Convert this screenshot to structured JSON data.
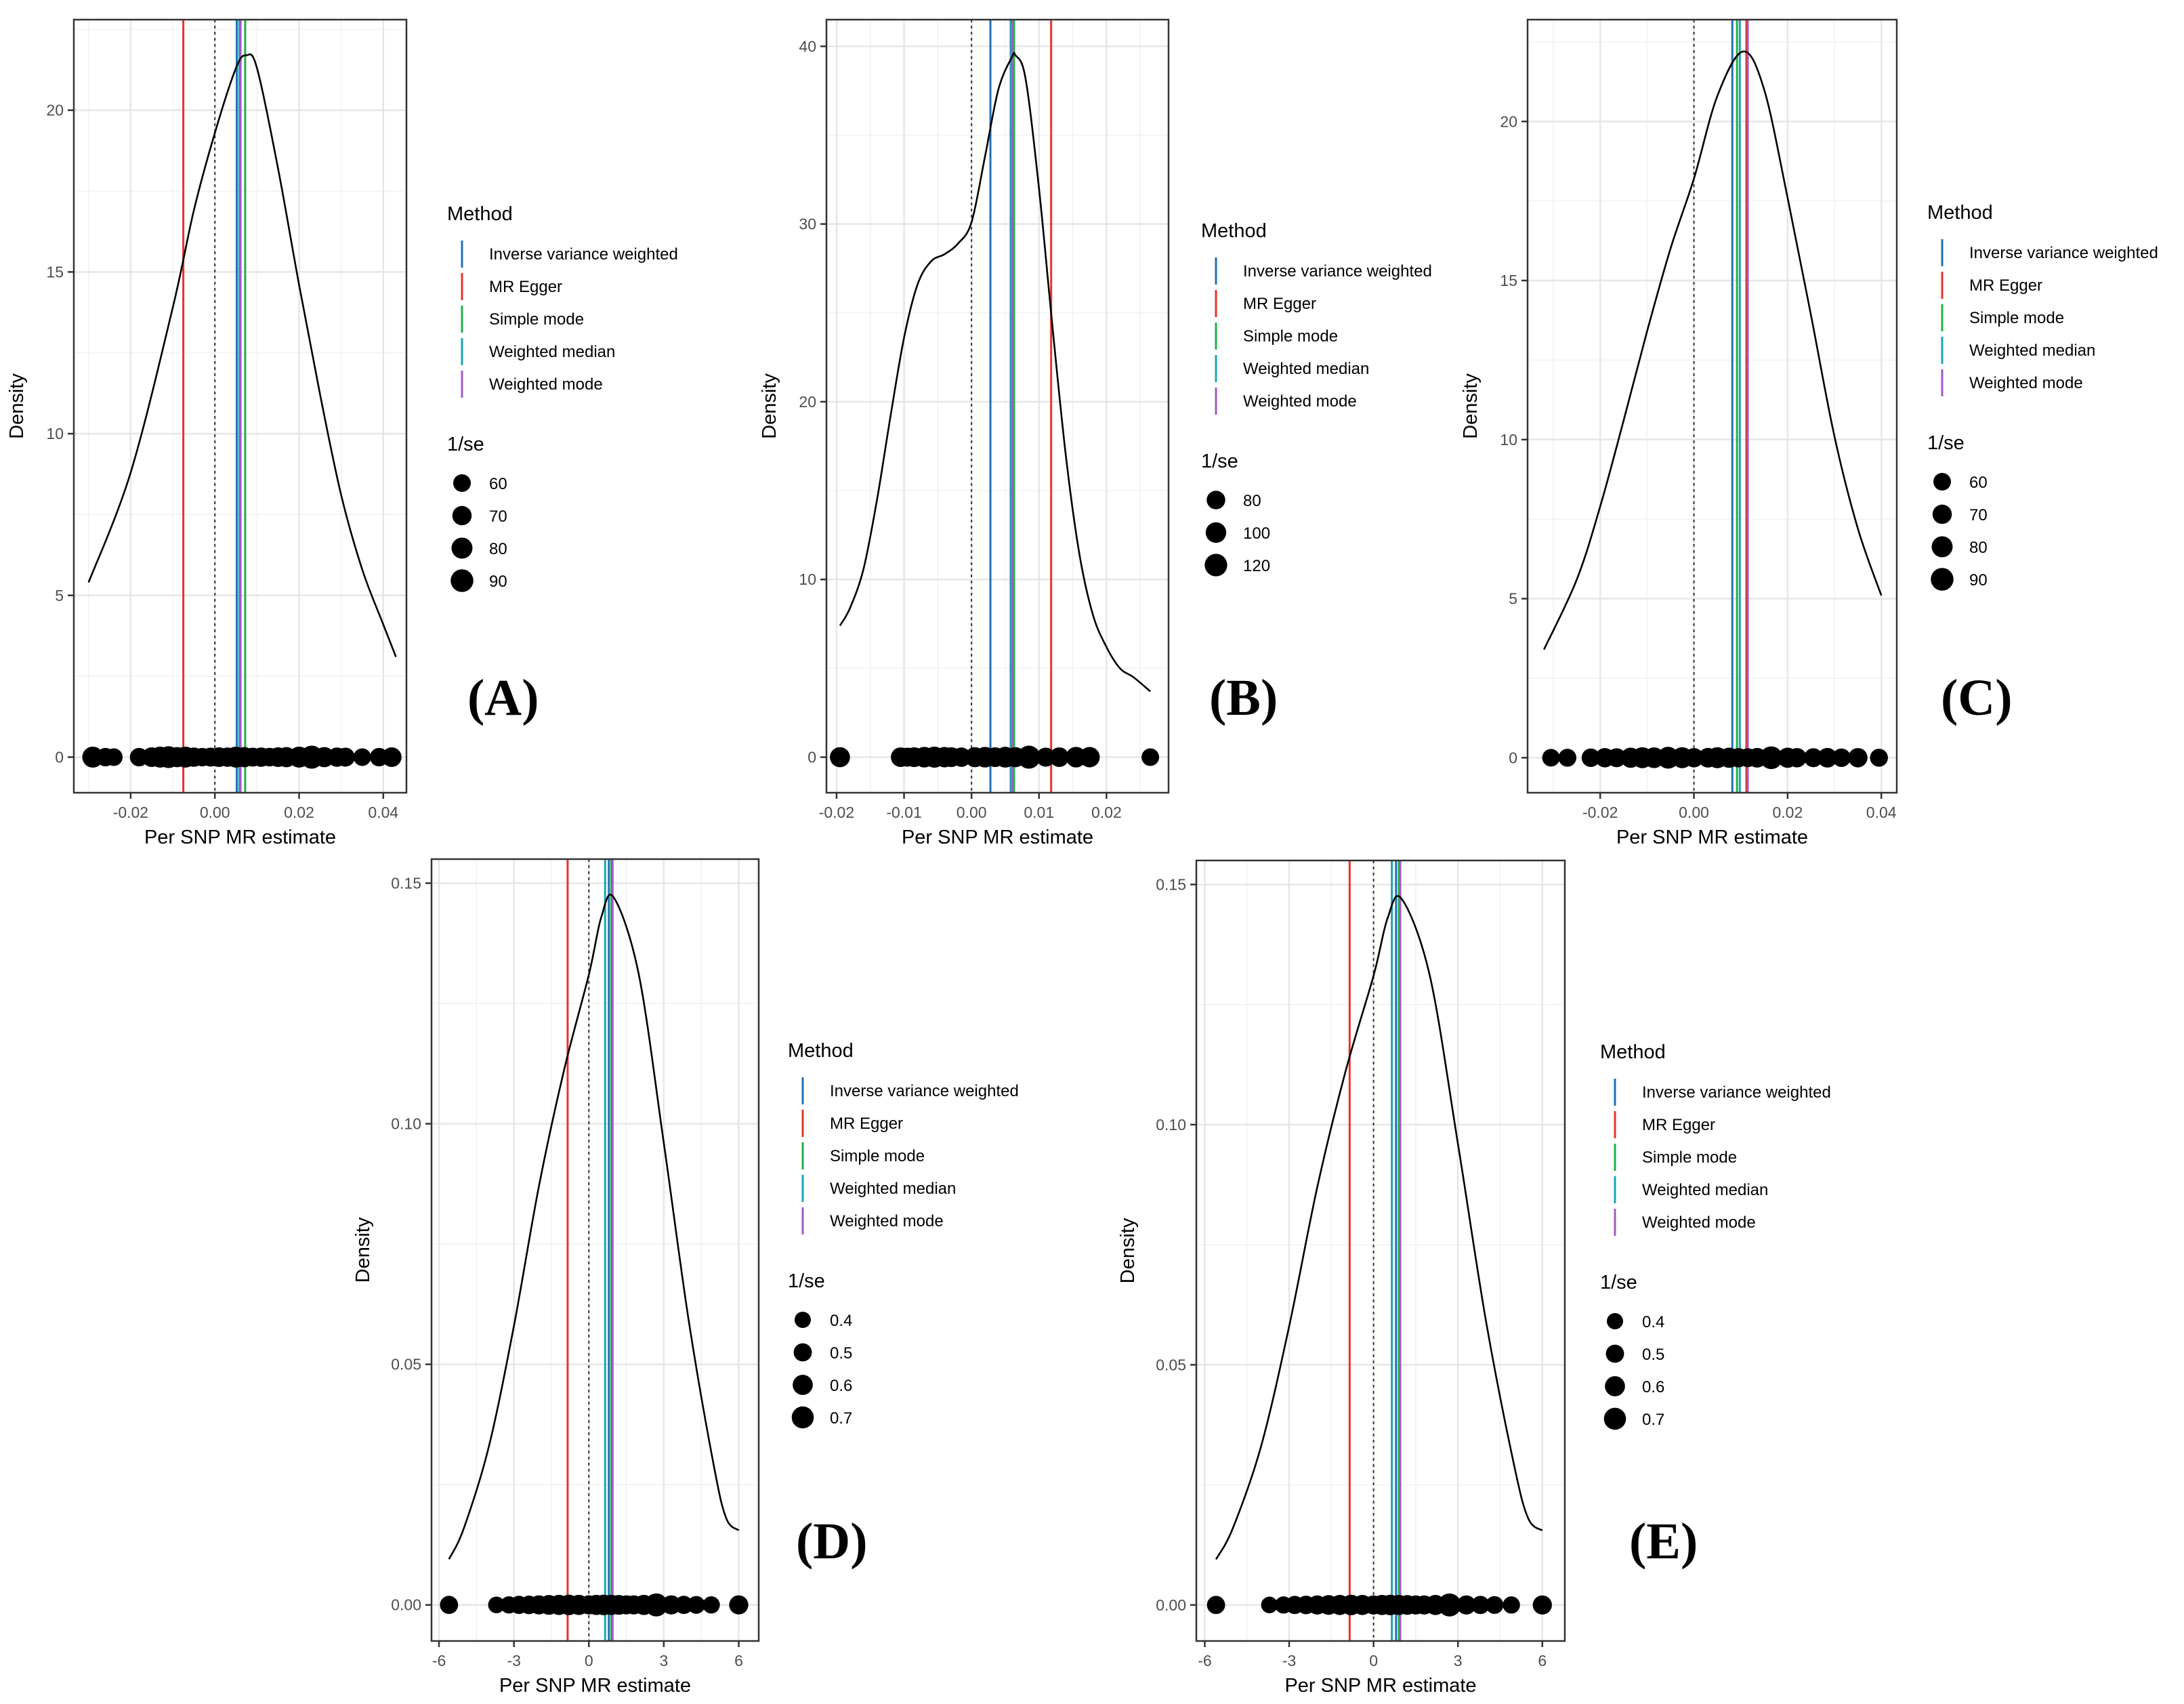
{
  "colors": {
    "ivw": "#1f6fb5",
    "egger": "#e8332a",
    "simple_mode": "#1fb04a",
    "weighted_median": "#1aa5b5",
    "weighted_mode": "#a05bc4",
    "curve": "#000000",
    "zero_line": "#333333",
    "grid": "#e6e6e6",
    "axis_text": "#4d4d4d"
  },
  "chart_data": [
    {
      "panel": "(A)",
      "type": "line",
      "xlabel": "Per SNP MR estimate",
      "ylabel": "Density",
      "xlim": [
        -0.0335,
        0.0455
      ],
      "ylim": [
        -1.1,
        22.8
      ],
      "xticks": [
        -0.02,
        0.0,
        0.02,
        0.04
      ],
      "xtick_labels": [
        "-0.02",
        "0.00",
        "0.02",
        "0.04"
      ],
      "yticks": [
        0,
        5,
        10,
        15,
        20
      ],
      "ytick_labels": [
        "0",
        "5",
        "10",
        "15",
        "20"
      ],
      "density": {
        "x": [
          -0.03,
          -0.02,
          -0.01,
          -0.005,
          0.0,
          0.005,
          0.0075,
          0.01,
          0.015,
          0.02,
          0.025,
          0.03,
          0.035,
          0.04,
          0.043
        ],
        "y": [
          5.4,
          8.8,
          13.9,
          16.9,
          19.3,
          21.3,
          21.7,
          21.3,
          18.2,
          14.6,
          11.2,
          8.1,
          5.8,
          4.1,
          3.1
        ]
      },
      "method_lines": {
        "Inverse variance weighted": 0.0052,
        "MR Egger": -0.0075,
        "Simple mode": 0.0072,
        "Weighted median": 0.0058,
        "Weighted mode": 0.0061
      },
      "points": {
        "x": [
          -0.029,
          -0.026,
          -0.024,
          -0.018,
          -0.015,
          -0.013,
          -0.011,
          -0.009,
          -0.007,
          -0.005,
          -0.003,
          -0.001,
          0.001,
          0.003,
          0.005,
          0.007,
          0.009,
          0.011,
          0.013,
          0.015,
          0.017,
          0.02,
          0.023,
          0.026,
          0.029,
          0.031,
          0.035,
          0.039,
          0.042
        ],
        "size": [
          80,
          65,
          60,
          65,
          72,
          80,
          85,
          75,
          80,
          70,
          65,
          68,
          72,
          70,
          80,
          75,
          68,
          70,
          66,
          72,
          75,
          80,
          92,
          75,
          70,
          68,
          60,
          65,
          72
        ]
      },
      "legend": {
        "method_title": "Method",
        "methods": [
          "Inverse variance weighted",
          "MR Egger",
          "Simple mode",
          "Weighted median",
          "Weighted mode"
        ],
        "size_title": "1/se",
        "size_breaks": [
          60,
          70,
          80,
          90
        ],
        "size_labels": [
          "60",
          "70",
          "80",
          "90"
        ],
        "size_range": [
          60,
          92
        ]
      }
    },
    {
      "panel": "(B)",
      "type": "line",
      "xlabel": "Per SNP MR estimate",
      "ylabel": "Density",
      "xlim": [
        -0.0215,
        0.0292
      ],
      "ylim": [
        -2.0,
        41.5
      ],
      "xticks": [
        -0.02,
        -0.01,
        0.0,
        0.01,
        0.02
      ],
      "xtick_labels": [
        "-0.02",
        "-0.01",
        "0.00",
        "0.01",
        "0.02"
      ],
      "yticks": [
        0,
        10,
        20,
        30,
        40
      ],
      "ytick_labels": [
        "0",
        "10",
        "20",
        "30",
        "40"
      ],
      "density": {
        "x": [
          -0.0195,
          -0.018,
          -0.016,
          -0.014,
          -0.012,
          -0.01,
          -0.008,
          -0.006,
          -0.004,
          -0.002,
          0.0,
          0.002,
          0.004,
          0.006,
          0.0065,
          0.008,
          0.01,
          0.012,
          0.014,
          0.016,
          0.018,
          0.02,
          0.022,
          0.024,
          0.0265
        ],
        "y": [
          7.4,
          8.4,
          10.6,
          14.5,
          19.2,
          23.6,
          26.6,
          27.9,
          28.3,
          28.9,
          30.1,
          33.8,
          37.6,
          39.4,
          39.5,
          38.2,
          32.0,
          24.2,
          16.9,
          11.4,
          8.0,
          6.2,
          5.0,
          4.5,
          3.7
        ]
      },
      "method_lines": {
        "Inverse variance weighted": 0.0028,
        "MR Egger": 0.0118,
        "Simple mode": 0.0063,
        "Weighted median": 0.0058,
        "Weighted mode": 0.006
      },
      "points": {
        "x": [
          -0.0195,
          -0.0105,
          -0.0095,
          -0.0085,
          -0.007,
          -0.0055,
          -0.004,
          -0.003,
          -0.0015,
          0.0005,
          0.002,
          0.0035,
          0.005,
          0.0065,
          0.0085,
          0.011,
          0.013,
          0.0155,
          0.0175,
          0.0265
        ],
        "size": [
          95,
          90,
          85,
          92,
          100,
          105,
          98,
          92,
          88,
          95,
          100,
          92,
          102,
          95,
          125,
          85,
          90,
          100,
          98,
          70
        ]
      },
      "legend": {
        "method_title": "Method",
        "methods": [
          "Inverse variance weighted",
          "MR Egger",
          "Simple mode",
          "Weighted median",
          "Weighted mode"
        ],
        "size_title": "1/se",
        "size_breaks": [
          80,
          100,
          120
        ],
        "size_labels": [
          "80",
          "100",
          "120"
        ],
        "size_range": [
          70,
          125
        ]
      }
    },
    {
      "panel": "(C)",
      "type": "line",
      "xlabel": "Per SNP MR estimate",
      "ylabel": "Density",
      "xlim": [
        -0.0355,
        0.0433
      ],
      "ylim": [
        -1.1,
        23.2
      ],
      "xticks": [
        -0.02,
        0.0,
        0.02,
        0.04
      ],
      "xtick_labels": [
        "-0.02",
        "0.00",
        "0.02",
        "0.04"
      ],
      "yticks": [
        0,
        5,
        10,
        15,
        20
      ],
      "ytick_labels": [
        "0",
        "5",
        "10",
        "15",
        "20"
      ],
      "density": {
        "x": [
          -0.032,
          -0.025,
          -0.02,
          -0.015,
          -0.01,
          -0.005,
          0.0,
          0.005,
          0.0105,
          0.015,
          0.02,
          0.025,
          0.03,
          0.035,
          0.04
        ],
        "y": [
          3.4,
          5.6,
          7.9,
          10.6,
          13.4,
          16.0,
          18.2,
          20.8,
          22.2,
          21.0,
          17.6,
          13.9,
          10.1,
          7.2,
          5.1
        ]
      },
      "method_lines": {
        "Inverse variance weighted": 0.0082,
        "MR Egger": 0.0112,
        "Simple mode": 0.0092,
        "Weighted median": 0.0098,
        "Weighted mode": 0.0115
      },
      "points": {
        "x": [
          -0.0305,
          -0.027,
          -0.022,
          -0.019,
          -0.0165,
          -0.0135,
          -0.011,
          -0.0085,
          -0.0055,
          -0.0025,
          0.0,
          0.003,
          0.005,
          0.0075,
          0.0095,
          0.0115,
          0.0135,
          0.0165,
          0.02,
          0.022,
          0.0255,
          0.0285,
          0.0315,
          0.035,
          0.0395
        ],
        "size": [
          60,
          62,
          65,
          70,
          68,
          75,
          80,
          78,
          85,
          80,
          70,
          72,
          80,
          75,
          70,
          68,
          72,
          90,
          75,
          70,
          68,
          72,
          65,
          70,
          62
        ]
      },
      "legend": {
        "method_title": "Method",
        "methods": [
          "Inverse variance weighted",
          "MR Egger",
          "Simple mode",
          "Weighted median",
          "Weighted mode"
        ],
        "size_title": "1/se",
        "size_breaks": [
          60,
          70,
          80,
          90
        ],
        "size_labels": [
          "60",
          "70",
          "80",
          "90"
        ],
        "size_range": [
          60,
          92
        ]
      }
    },
    {
      "panel": "(D)",
      "type": "line",
      "xlabel": "Per SNP MR estimate",
      "ylabel": "Density",
      "xlim": [
        -6.3,
        6.8
      ],
      "ylim": [
        -0.0075,
        0.155
      ],
      "xticks": [
        -6,
        -3,
        0,
        3,
        6
      ],
      "xtick_labels": [
        "-6",
        "-3",
        "0",
        "3",
        "6"
      ],
      "yticks": [
        0.0,
        0.05,
        0.1,
        0.15
      ],
      "ytick_labels": [
        "0.00",
        "0.05",
        "0.10",
        "0.15"
      ],
      "density": {
        "x": [
          -5.6,
          -5.0,
          -4.0,
          -3.0,
          -2.0,
          -1.0,
          0.0,
          0.5,
          1.0,
          2.0,
          3.0,
          4.0,
          5.0,
          5.5,
          6.0
        ],
        "y": [
          0.0095,
          0.016,
          0.033,
          0.058,
          0.087,
          0.111,
          0.131,
          0.143,
          0.147,
          0.131,
          0.096,
          0.059,
          0.029,
          0.018,
          0.0155
        ]
      },
      "method_lines": {
        "Inverse variance weighted": 0.8,
        "MR Egger": -0.85,
        "Simple mode": 0.9,
        "Weighted median": 0.65,
        "Weighted mode": 0.95
      },
      "points": {
        "x": [
          -5.6,
          -3.7,
          -3.2,
          -2.8,
          -2.4,
          -2.0,
          -1.6,
          -1.2,
          -0.8,
          -0.4,
          0.0,
          0.3,
          0.6,
          0.9,
          1.2,
          1.5,
          1.8,
          2.2,
          2.7,
          3.3,
          3.8,
          4.3,
          4.9,
          6.0
        ],
        "size": [
          0.5,
          0.42,
          0.45,
          0.5,
          0.52,
          0.55,
          0.58,
          0.6,
          0.62,
          0.6,
          0.55,
          0.6,
          0.62,
          0.6,
          0.58,
          0.55,
          0.55,
          0.6,
          0.75,
          0.55,
          0.5,
          0.48,
          0.45,
          0.55
        ]
      },
      "legend": {
        "method_title": "Method",
        "methods": [
          "Inverse variance weighted",
          "MR Egger",
          "Simple mode",
          "Weighted median",
          "Weighted mode"
        ],
        "size_title": "1/se",
        "size_breaks": [
          0.4,
          0.5,
          0.6,
          0.7
        ],
        "size_labels": [
          "0.4",
          "0.5",
          "0.6",
          "0.7"
        ],
        "size_range": [
          0.4,
          0.75
        ]
      }
    },
    {
      "panel": "(E)",
      "type": "line",
      "xlabel": "Per SNP MR estimate",
      "ylabel": "Density",
      "xlim": [
        -6.3,
        6.8
      ],
      "ylim": [
        -0.0075,
        0.155
      ],
      "xticks": [
        -6,
        -3,
        0,
        3,
        6
      ],
      "xtick_labels": [
        "-6",
        "-3",
        "0",
        "3",
        "6"
      ],
      "yticks": [
        0.0,
        0.05,
        0.1,
        0.15
      ],
      "ytick_labels": [
        "0.00",
        "0.05",
        "0.10",
        "0.15"
      ],
      "density": {
        "x": [
          -5.6,
          -5.0,
          -4.0,
          -3.0,
          -2.0,
          -1.0,
          0.0,
          0.5,
          1.0,
          2.0,
          3.0,
          4.0,
          5.0,
          5.5,
          6.0
        ],
        "y": [
          0.0095,
          0.016,
          0.033,
          0.058,
          0.087,
          0.111,
          0.131,
          0.143,
          0.147,
          0.131,
          0.096,
          0.059,
          0.029,
          0.018,
          0.0155
        ]
      },
      "method_lines": {
        "Inverse variance weighted": 0.8,
        "MR Egger": -0.85,
        "Simple mode": 0.9,
        "Weighted median": 0.65,
        "Weighted mode": 0.95
      },
      "points": {
        "x": [
          -5.6,
          -3.7,
          -3.2,
          -2.8,
          -2.4,
          -2.0,
          -1.6,
          -1.2,
          -0.8,
          -0.4,
          0.0,
          0.3,
          0.6,
          0.9,
          1.2,
          1.5,
          1.8,
          2.2,
          2.7,
          3.3,
          3.8,
          4.3,
          4.9,
          6.0
        ],
        "size": [
          0.5,
          0.42,
          0.45,
          0.5,
          0.52,
          0.55,
          0.58,
          0.6,
          0.62,
          0.6,
          0.55,
          0.6,
          0.62,
          0.6,
          0.58,
          0.55,
          0.55,
          0.6,
          0.75,
          0.55,
          0.5,
          0.48,
          0.45,
          0.55
        ]
      },
      "legend": {
        "method_title": "Method",
        "methods": [
          "Inverse variance weighted",
          "MR Egger",
          "Simple mode",
          "Weighted median",
          "Weighted mode"
        ],
        "size_title": "1/se",
        "size_breaks": [
          0.4,
          0.5,
          0.6,
          0.7
        ],
        "size_labels": [
          "0.4",
          "0.5",
          "0.6",
          "0.7"
        ],
        "size_range": [
          0.4,
          0.75
        ]
      }
    }
  ]
}
